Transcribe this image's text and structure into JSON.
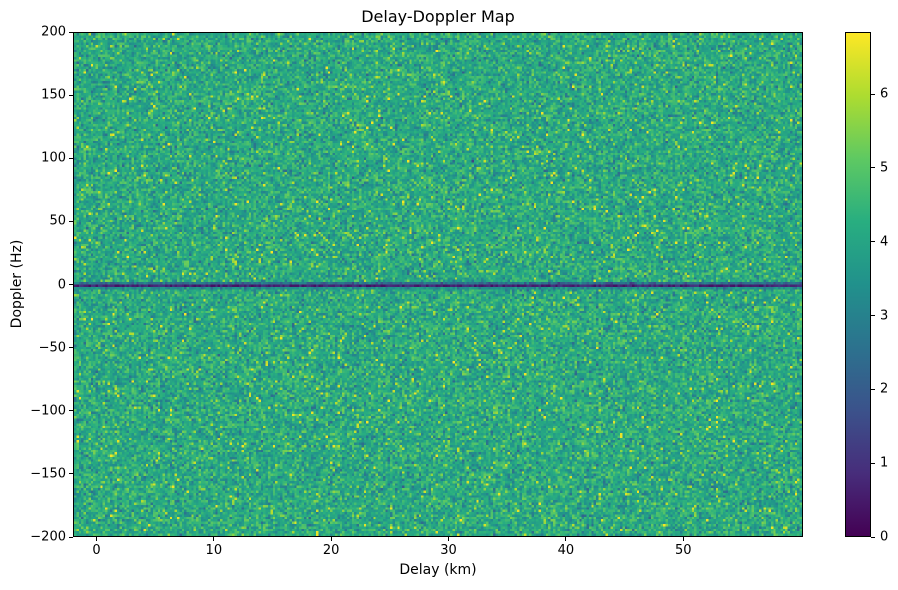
{
  "figure": {
    "title": "Delay-Doppler Map",
    "xlabel": "Delay (km)",
    "ylabel": "Doppler (Hz)"
  },
  "chart_data": {
    "type": "heatmap",
    "title": "Delay-Doppler Map",
    "xlabel": "Delay (km)",
    "ylabel": "Doppler (Hz)",
    "xlim": [
      -2,
      60.2
    ],
    "ylim": [
      -200,
      200
    ],
    "grid": false,
    "x_ticks": [
      {
        "value": 0,
        "label": "0"
      },
      {
        "value": 10,
        "label": "10"
      },
      {
        "value": 20,
        "label": "20"
      },
      {
        "value": 30,
        "label": "30"
      },
      {
        "value": 40,
        "label": "40"
      },
      {
        "value": 50,
        "label": "50"
      }
    ],
    "y_ticks": [
      {
        "value": 200,
        "label": "200"
      },
      {
        "value": 150,
        "label": "150"
      },
      {
        "value": 100,
        "label": "100"
      },
      {
        "value": 50,
        "label": "50"
      },
      {
        "value": 0,
        "label": "0"
      },
      {
        "value": -50,
        "label": "−50"
      },
      {
        "value": -100,
        "label": "−100"
      },
      {
        "value": -150,
        "label": "−150"
      },
      {
        "value": -200,
        "label": "−200"
      }
    ],
    "colorbar": {
      "vmin": 0,
      "vmax": 6.84,
      "ticks": [
        {
          "value": 0,
          "label": "0"
        },
        {
          "value": 1,
          "label": "1"
        },
        {
          "value": 2,
          "label": "2"
        },
        {
          "value": 3,
          "label": "3"
        },
        {
          "value": 4,
          "label": "4"
        },
        {
          "value": 5,
          "label": "5"
        },
        {
          "value": 6,
          "label": "6"
        }
      ]
    },
    "colormap": "viridis",
    "colormap_stops": [
      [
        0.0,
        "#440154"
      ],
      [
        0.125,
        "#472d7b"
      ],
      [
        0.25,
        "#3b528b"
      ],
      [
        0.375,
        "#2c728e"
      ],
      [
        0.5,
        "#21918c"
      ],
      [
        0.625,
        "#28ae80"
      ],
      [
        0.75,
        "#5ec962"
      ],
      [
        0.875,
        "#addc30"
      ],
      [
        1.0,
        "#fde725"
      ]
    ],
    "content": {
      "description": "Uniform random speckle noise field (mean ~4.2, mostly teal-green with scattered yellow-green bright pixels and darker teal pixels) covering the full delay-Doppler extent, with a thin dark purple horizontal stripe of near-zero values at Doppler = 0 Hz spanning all delays.",
      "noise_mean": 4.15,
      "noise_std": 0.6,
      "bright_speckle": {
        "probability": 0.018,
        "value_range": [
          5.6,
          6.8
        ]
      },
      "dark_speckle": {
        "probability": 0.02,
        "value_range": [
          2.4,
          3.1
        ]
      },
      "stripe": {
        "doppler_hz": 0,
        "core_value_range": [
          0.25,
          1.15
        ],
        "edge_mean_above": 2.5,
        "edge_mean_below": 3.3
      },
      "render_grid": {
        "cols": 304,
        "rows": 210
      },
      "seed": 42
    }
  }
}
